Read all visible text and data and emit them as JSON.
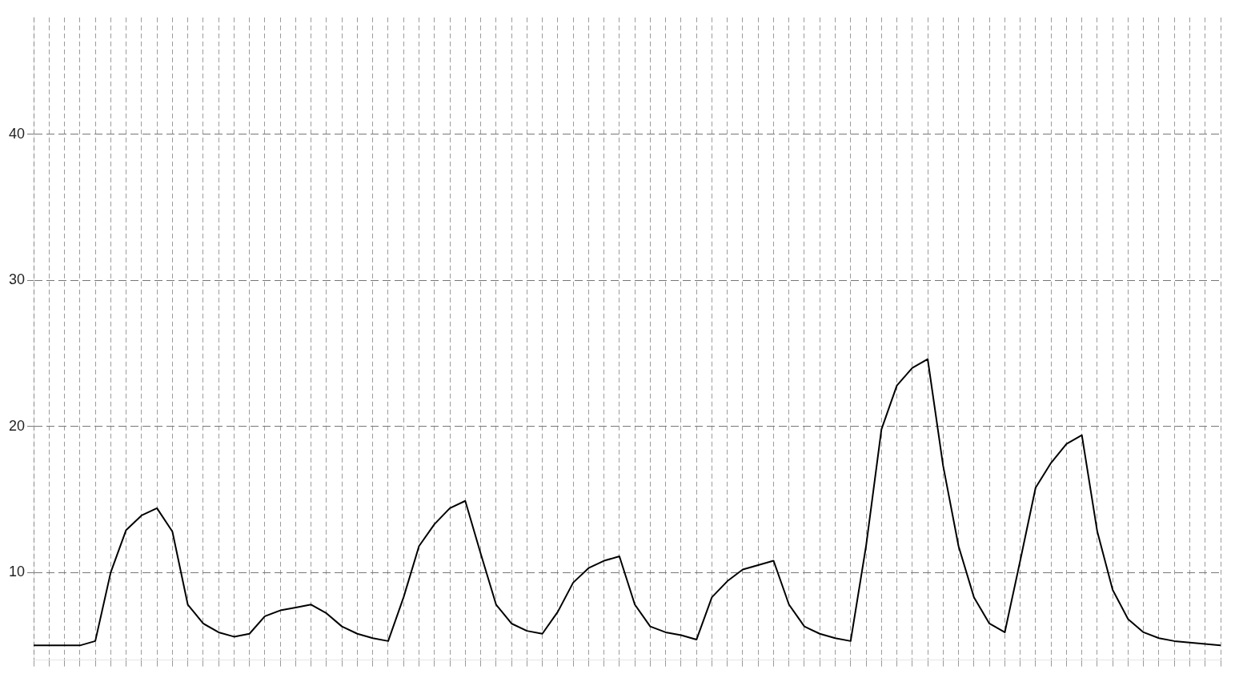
{
  "chart_data": {
    "type": "line",
    "categories": [
      null,
      null,
      null,
      null,
      null,
      null,
      null,
      null,
      null,
      null,
      null,
      null,
      null,
      null,
      null,
      null,
      null,
      null,
      null,
      null,
      null,
      null,
      null,
      null,
      null,
      null,
      null,
      null,
      null,
      null,
      null,
      null,
      null,
      null,
      null,
      null,
      null,
      null,
      null,
      null,
      null,
      null,
      null,
      null,
      null,
      null,
      null,
      null,
      null,
      null,
      null,
      null,
      null,
      null,
      null,
      null,
      null,
      null,
      null,
      null,
      null,
      null,
      null,
      null,
      null,
      null,
      null,
      null,
      null,
      null,
      null,
      null,
      null,
      null,
      null,
      null,
      null,
      null
    ],
    "series": [
      {
        "color": "#000000",
        "values": [
          5.0,
          5.0,
          5.0,
          5.0,
          5.3,
          10.0,
          12.9,
          13.9,
          14.4,
          12.8,
          7.8,
          6.5,
          5.9,
          5.6,
          5.8,
          7.0,
          7.4,
          7.6,
          7.8,
          7.2,
          6.3,
          5.8,
          5.5,
          5.3,
          8.3,
          11.8,
          13.3,
          14.4,
          14.9,
          11.3,
          7.8,
          6.5,
          6.0,
          5.8,
          7.3,
          9.3,
          10.3,
          10.8,
          11.1,
          7.8,
          6.3,
          5.9,
          5.7,
          5.4,
          8.3,
          9.4,
          10.2,
          10.5,
          10.8,
          7.8,
          6.3,
          5.8,
          5.5,
          5.3,
          11.8,
          19.8,
          22.8,
          24.0,
          24.6,
          17.3,
          11.8,
          8.3,
          6.5,
          5.9,
          10.8,
          15.8,
          17.5,
          18.8,
          19.4,
          12.8,
          8.8,
          6.8,
          5.9,
          5.5,
          5.3,
          5.2,
          5.1,
          5.0
        ]
      }
    ],
    "ylim": [
      4,
      48
    ],
    "yticks": [
      10,
      20,
      30,
      40
    ],
    "grid": true,
    "line_style": "solid",
    "marker": "none"
  }
}
